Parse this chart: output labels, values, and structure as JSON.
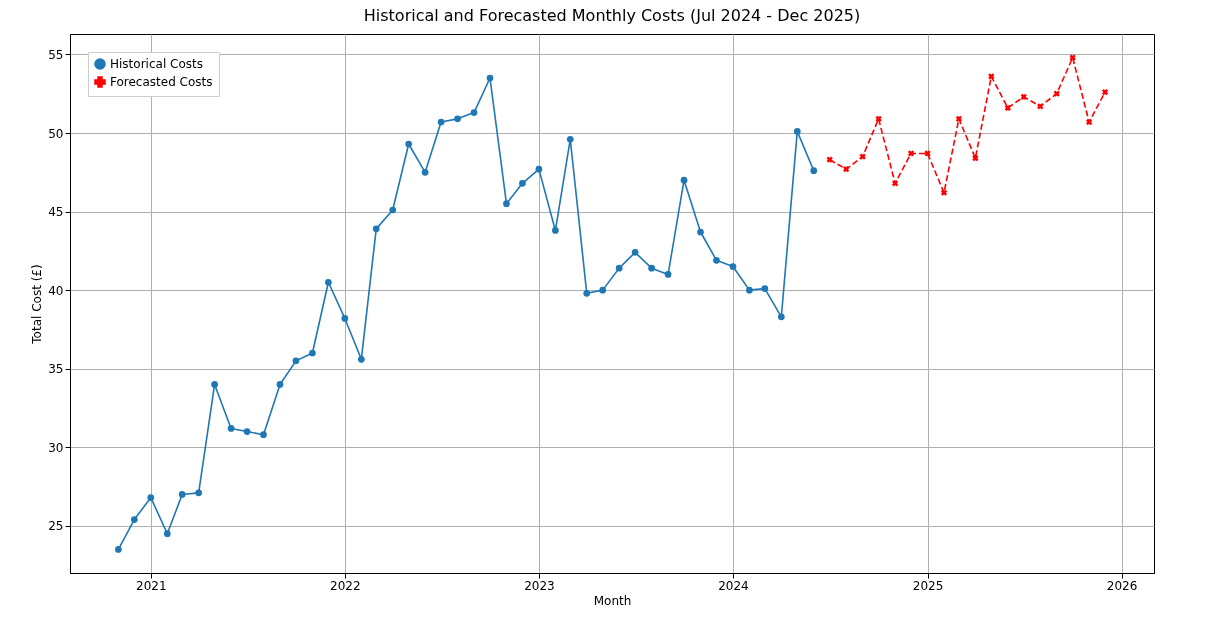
{
  "chart_data": {
    "type": "line",
    "title": "Historical and Forecasted Monthly Costs (Jul 2024 - Dec 2025)",
    "xlabel": "Month",
    "ylabel": "Total Cost (£)",
    "xlim": [
      "2020-08-02",
      "2026-03-03"
    ],
    "xticks": [
      "2021",
      "2022",
      "2023",
      "2024",
      "2025",
      "2026"
    ],
    "ylim": [
      22.0,
      56.3
    ],
    "yticks": [
      25,
      30,
      35,
      40,
      45,
      50,
      55
    ],
    "grid": true,
    "legend": "top left",
    "series": [
      {
        "name": "Historical Costs",
        "color": "#1f77b4",
        "marker": "circle",
        "line_style": "solid",
        "x": [
          "2020-11",
          "2020-12",
          "2021-01",
          "2021-02",
          "2021-03",
          "2021-04",
          "2021-05",
          "2021-06",
          "2021-07",
          "2021-08",
          "2021-09",
          "2021-10",
          "2021-11",
          "2021-12",
          "2022-01",
          "2022-02",
          "2022-03",
          "2022-04",
          "2022-05",
          "2022-06",
          "2022-07",
          "2022-08",
          "2022-09",
          "2022-10",
          "2022-11",
          "2022-12",
          "2023-01",
          "2023-02",
          "2023-03",
          "2023-04",
          "2023-05",
          "2023-06",
          "2023-07",
          "2023-08",
          "2023-09",
          "2023-10",
          "2023-11",
          "2023-12",
          "2024-01",
          "2024-02",
          "2024-03",
          "2024-04",
          "2024-05",
          "2024-06"
        ],
        "values": [
          23.5,
          25.4,
          26.8,
          24.5,
          27.0,
          27.1,
          34.0,
          31.2,
          31.0,
          30.8,
          34.0,
          35.5,
          36.0,
          40.5,
          38.2,
          35.6,
          43.9,
          45.1,
          49.3,
          47.5,
          50.7,
          50.9,
          51.3,
          53.5,
          45.5,
          46.8,
          47.7,
          43.8,
          49.6,
          39.8,
          40.0,
          41.4,
          42.4,
          41.4,
          41.0,
          47.0,
          43.7,
          41.9,
          41.5,
          40.0,
          40.1,
          38.3,
          50.1,
          47.6
        ]
      },
      {
        "name": "Forecasted Costs",
        "color": "#ff0000",
        "marker": "cross",
        "line_style": "dashed",
        "x": [
          "2024-07",
          "2024-08",
          "2024-09",
          "2024-10",
          "2024-11",
          "2024-12",
          "2025-01",
          "2025-02",
          "2025-03",
          "2025-04",
          "2025-05",
          "2025-06",
          "2025-07",
          "2025-08",
          "2025-09",
          "2025-10",
          "2025-11",
          "2025-12"
        ],
        "values": [
          48.3,
          47.7,
          48.5,
          50.9,
          46.8,
          48.7,
          48.7,
          46.2,
          50.9,
          48.4,
          53.6,
          51.6,
          52.3,
          51.7,
          52.5,
          54.8,
          50.7,
          52.6
        ]
      }
    ]
  }
}
